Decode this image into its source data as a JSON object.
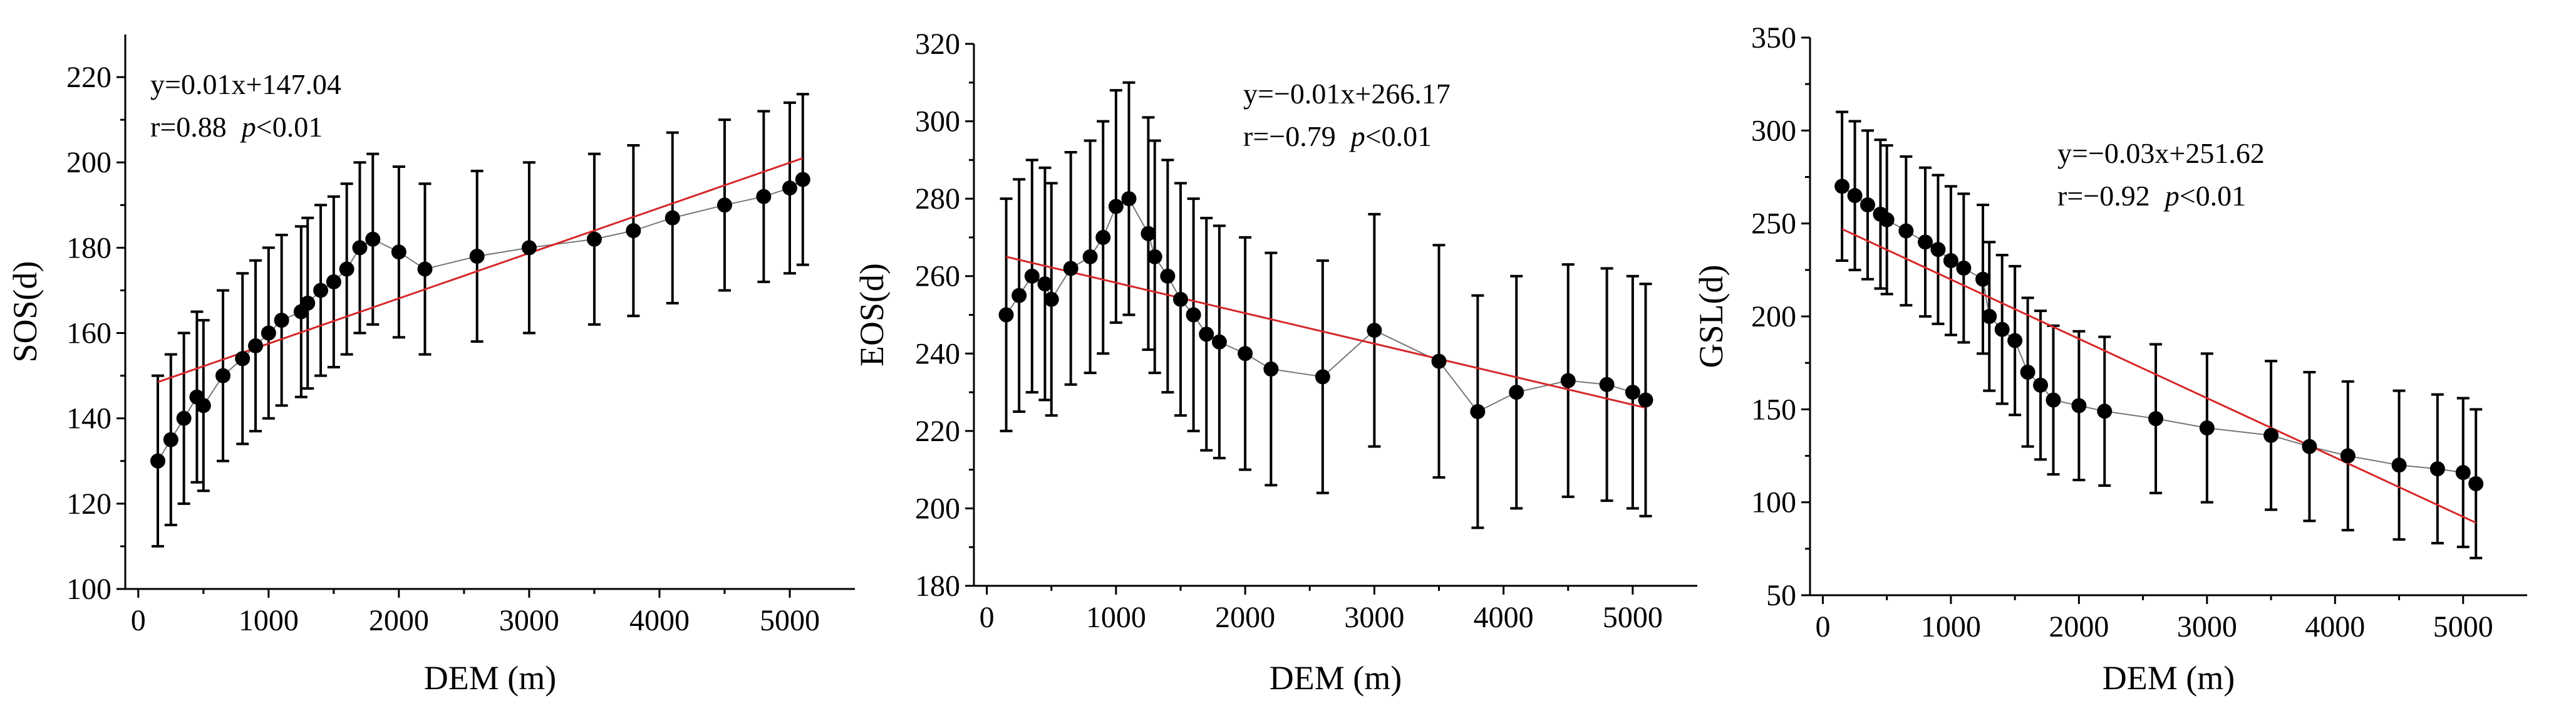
{
  "chart_data": [
    {
      "type": "scatter",
      "xlabel": "DEM (m)",
      "ylabel": "SOS(d)",
      "xlim": [
        -100,
        5500
      ],
      "ylim": [
        100,
        230
      ],
      "xticks": [
        0,
        1000,
        2000,
        3000,
        4000,
        5000
      ],
      "yticks": [
        100,
        120,
        140,
        160,
        180,
        200,
        220
      ],
      "equation": "y=0.01x+147.04",
      "stats": {
        "r": "r=0.88",
        "p_italic": "p",
        "p_rest": "<0.01"
      },
      "equation_position": "top-left",
      "series": [
        {
          "name": "SOS",
          "x": [
            150,
            250,
            350,
            450,
            500,
            650,
            800,
            900,
            1000,
            1100,
            1250,
            1300,
            1400,
            1500,
            1600,
            1700,
            1800,
            2000,
            2200,
            2600,
            3000,
            3500,
            3800,
            4100,
            4500,
            4800,
            5000,
            5100
          ],
          "y": [
            130,
            135,
            140,
            145,
            143,
            150,
            154,
            157,
            160,
            163,
            165,
            167,
            170,
            172,
            175,
            180,
            182,
            179,
            175,
            178,
            180,
            182,
            184,
            187,
            190,
            192,
            194,
            196
          ],
          "err": [
            20,
            20,
            20,
            20,
            20,
            20,
            20,
            20,
            20,
            20,
            20,
            20,
            20,
            20,
            20,
            20,
            20,
            20,
            20,
            20,
            20,
            20,
            20,
            20,
            20,
            20,
            20,
            20
          ]
        }
      ],
      "regression": {
        "x": [
          150,
          5100
        ],
        "y": [
          148.5,
          201.0
        ]
      }
    },
    {
      "type": "scatter",
      "xlabel": "DEM (m)",
      "ylabel": "EOS(d)",
      "xlim": [
        -100,
        5500
      ],
      "ylim": [
        180,
        320
      ],
      "xticks": [
        0,
        1000,
        2000,
        3000,
        4000,
        5000
      ],
      "yticks": [
        180,
        200,
        220,
        240,
        260,
        280,
        300,
        320
      ],
      "equation": "y=−0.01x+266.17",
      "stats": {
        "r": "r=−0.79",
        "p_italic": "p",
        "p_rest": "<0.01"
      },
      "equation_position": "top-center",
      "series": [
        {
          "name": "EOS",
          "x": [
            150,
            250,
            350,
            450,
            500,
            650,
            800,
            900,
            1000,
            1100,
            1250,
            1300,
            1400,
            1500,
            1600,
            1700,
            1800,
            2000,
            2200,
            2600,
            3000,
            3500,
            3800,
            4100,
            4500,
            4800,
            5000,
            5100
          ],
          "y": [
            250,
            255,
            260,
            258,
            254,
            262,
            265,
            270,
            278,
            280,
            271,
            265,
            260,
            254,
            250,
            245,
            243,
            240,
            236,
            234,
            246,
            238,
            225,
            230,
            233,
            232,
            230,
            228
          ],
          "err": [
            30,
            30,
            30,
            30,
            30,
            30,
            30,
            30,
            30,
            30,
            30,
            30,
            30,
            30,
            30,
            30,
            30,
            30,
            30,
            30,
            30,
            30,
            30,
            30,
            30,
            30,
            30,
            30
          ]
        }
      ],
      "regression": {
        "x": [
          150,
          5100
        ],
        "y": [
          265.0,
          226.0
        ]
      }
    },
    {
      "type": "scatter",
      "xlabel": "DEM (m)",
      "ylabel": "GSL(d)",
      "xlim": [
        -100,
        5500
      ],
      "ylim": [
        50,
        350
      ],
      "xticks": [
        0,
        1000,
        2000,
        3000,
        4000,
        5000
      ],
      "yticks": [
        50,
        100,
        150,
        200,
        250,
        300,
        350
      ],
      "equation": "y=−0.03x+251.62",
      "stats": {
        "r": "r=−0.92",
        "p_italic": "p",
        "p_rest": "<0.01"
      },
      "equation_position": "top-center",
      "series": [
        {
          "name": "GSL",
          "x": [
            150,
            250,
            350,
            450,
            500,
            650,
            800,
            900,
            1000,
            1100,
            1250,
            1300,
            1400,
            1500,
            1600,
            1700,
            1800,
            2000,
            2200,
            2600,
            3000,
            3500,
            3800,
            4100,
            4500,
            4800,
            5000,
            5100
          ],
          "y": [
            270,
            265,
            260,
            255,
            252,
            246,
            240,
            236,
            230,
            226,
            220,
            200,
            193,
            187,
            170,
            163,
            155,
            152,
            149,
            145,
            140,
            136,
            130,
            125,
            120,
            118,
            116,
            110
          ],
          "err": [
            40,
            40,
            40,
            40,
            40,
            40,
            40,
            40,
            40,
            40,
            40,
            40,
            40,
            40,
            40,
            40,
            40,
            40,
            40,
            40,
            40,
            40,
            40,
            40,
            40,
            40,
            40,
            40
          ]
        }
      ],
      "regression": {
        "x": [
          150,
          5100
        ],
        "y": [
          247.0,
          89.0
        ]
      }
    }
  ]
}
